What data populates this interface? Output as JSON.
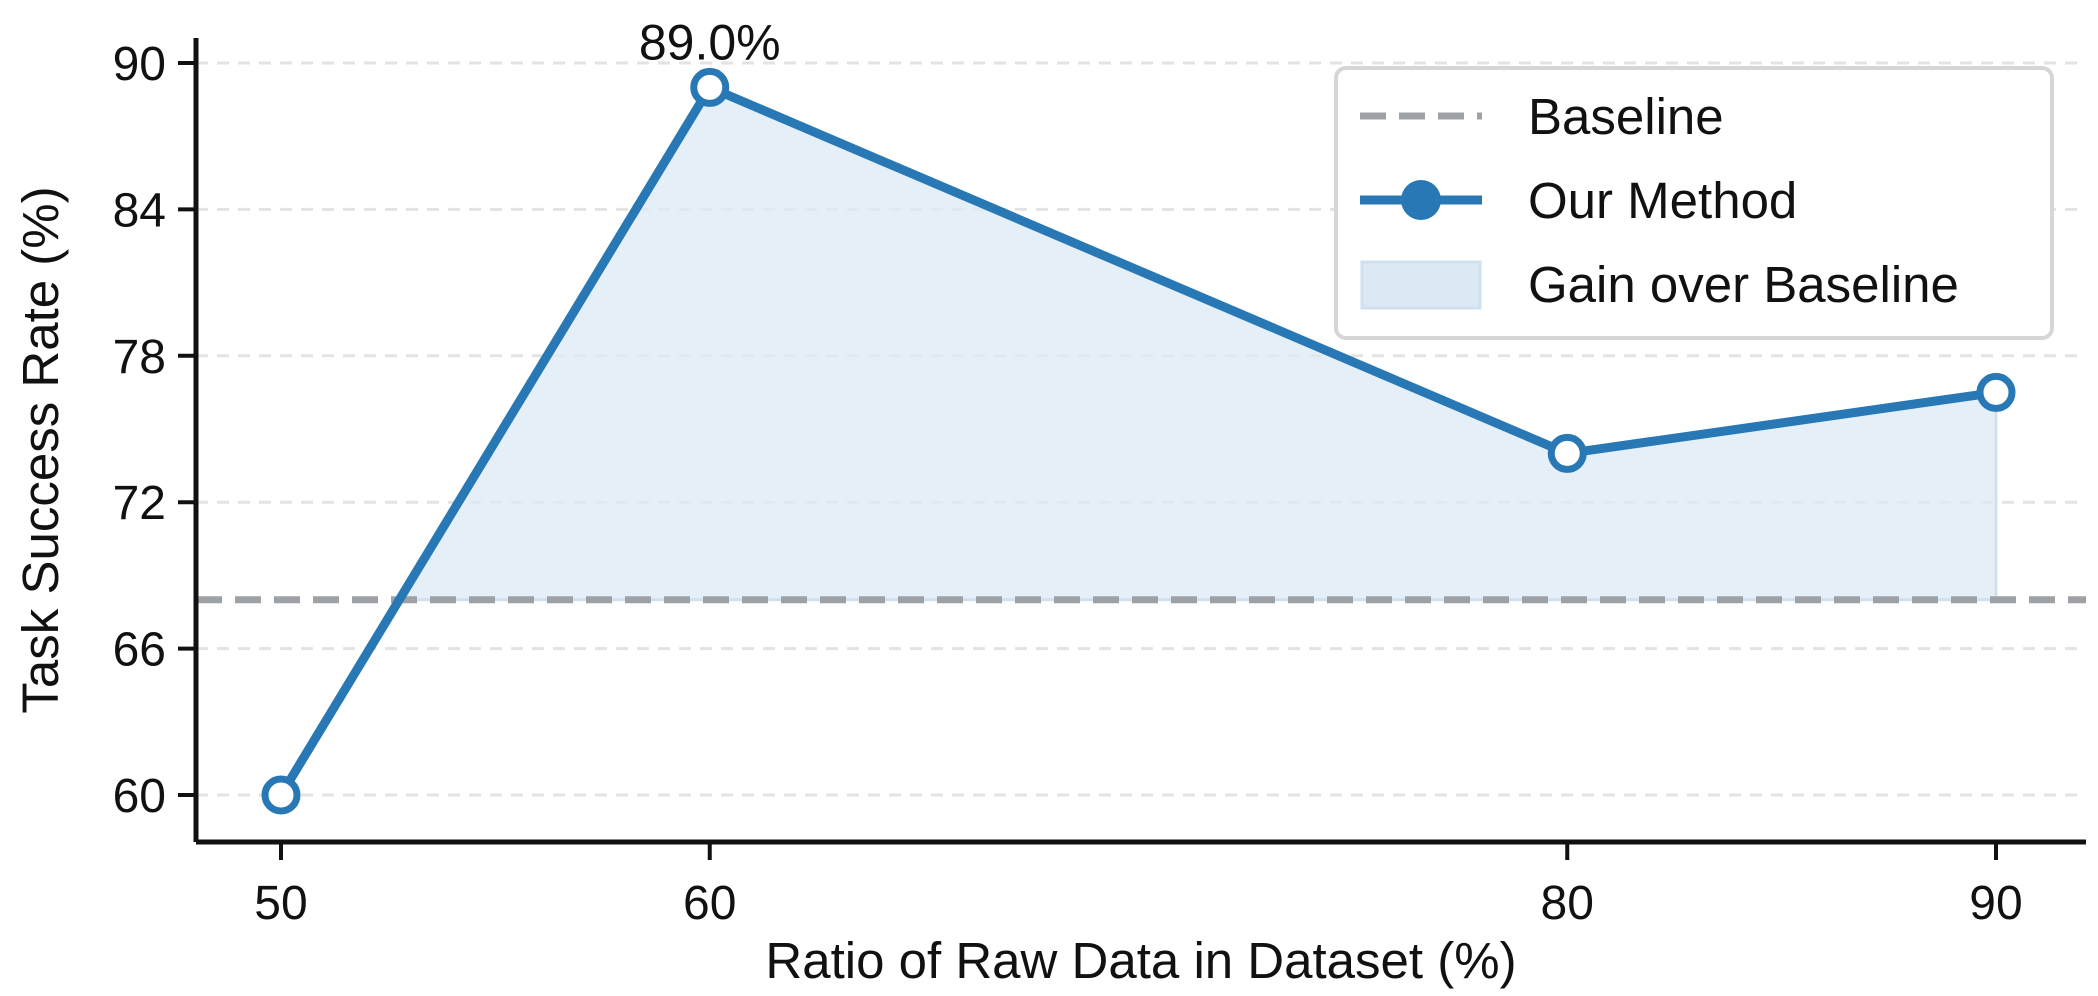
{
  "chart_data": {
    "type": "line",
    "x": [
      50,
      60,
      80,
      90
    ],
    "series": [
      {
        "name": "Our Method",
        "values": [
          60.0,
          89.0,
          74.0,
          76.5
        ],
        "color": "#2878b5"
      }
    ],
    "baseline": {
      "name": "Baseline",
      "value": 68.0,
      "color": "#9ea1a6"
    },
    "fill": {
      "name": "Gain over Baseline",
      "color": "#dce9f5"
    },
    "annotations": [
      {
        "x": 60,
        "y": 89.0,
        "text": "89.0%"
      }
    ],
    "xlabel": "Ratio of Raw Data in Dataset (%)",
    "ylabel": "Task Success Rate (%)",
    "xlim": [
      48,
      92
    ],
    "ylim": [
      58,
      91
    ],
    "xticks": [
      50,
      60,
      80,
      90
    ],
    "yticks": [
      60,
      66,
      72,
      78,
      84,
      90
    ],
    "grid": "horizontal dashed",
    "legend_position": "top-right"
  }
}
